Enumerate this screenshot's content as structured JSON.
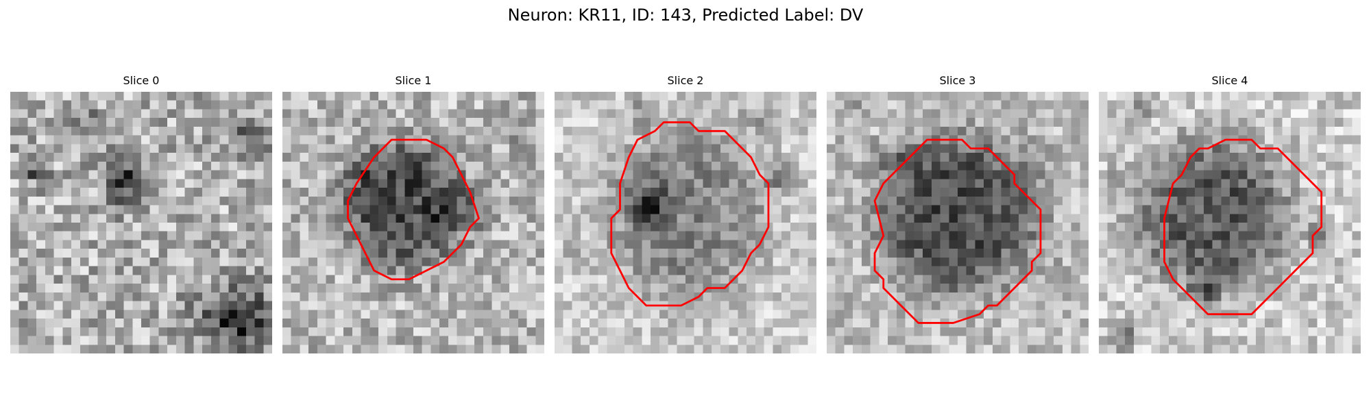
{
  "title": "Neuron: KR11, ID: 143, Predicted Label: DV",
  "colors": {
    "contour": "#ff0000",
    "background": "#ffffff"
  },
  "slices": [
    {
      "title": "Slice 0",
      "has_contour": false,
      "image": "noisy grayscale patch, no dark soma"
    },
    {
      "title": "Slice 1",
      "has_contour": true,
      "image": "dark soma centered with contour"
    },
    {
      "title": "Slice 2",
      "has_contour": true,
      "image": "medium-gray soma with dark spot at left"
    },
    {
      "title": "Slice 3",
      "has_contour": true,
      "image": "large dark soma with contour"
    },
    {
      "title": "Slice 4",
      "has_contour": true,
      "image": "dark soma with contour"
    }
  ]
}
